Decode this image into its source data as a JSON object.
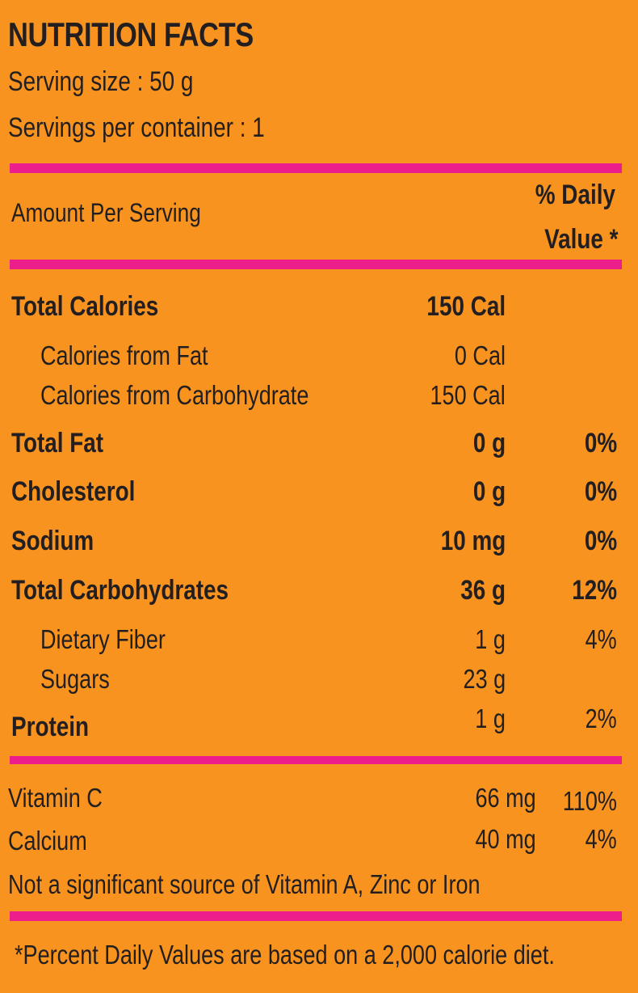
{
  "title": "NUTRITION FACTS",
  "serving_size": "Serving size : 50 g",
  "servings_per_container": "Servings per container : 1",
  "header": {
    "amount_label": "Amount Per Serving",
    "dv_line1": "% Daily",
    "dv_line2": "Value *"
  },
  "nutrients": [
    {
      "name": "Total Calories",
      "amount": "150 Cal",
      "dv": ""
    },
    {
      "name": "Calories from Fat",
      "amount": "0 Cal",
      "dv": ""
    },
    {
      "name": "Calories from Carbohydrate",
      "amount": "150 Cal",
      "dv": ""
    },
    {
      "name": "Total Fat",
      "amount": "0 g",
      "dv": "0%"
    },
    {
      "name": "Cholesterol",
      "amount": "0 g",
      "dv": "0%"
    },
    {
      "name": "Sodium",
      "amount": "10 mg",
      "dv": "0%"
    },
    {
      "name": "Total Carbohydrates",
      "amount": "36 g",
      "dv": "12%"
    },
    {
      "name": "Dietary Fiber",
      "amount": "1 g",
      "dv": "4%"
    },
    {
      "name": "Sugars",
      "amount": "23 g",
      "dv": ""
    },
    {
      "name": "Protein",
      "amount": "1 g",
      "dv": "2%"
    }
  ],
  "vitamins": [
    {
      "name": "Vitamin C",
      "amount": "66 mg",
      "dv": "110%"
    },
    {
      "name": "Calcium",
      "amount": "40 mg",
      "dv": "4%"
    }
  ],
  "not_significant": "Not a significant source of Vitamin A, Zinc or Iron",
  "footnote": "*Percent Daily Values are based on a 2,000 calorie diet.",
  "colors": {
    "background": "#F7931E",
    "rule": "#EC1E8C",
    "text": "#231F20"
  }
}
